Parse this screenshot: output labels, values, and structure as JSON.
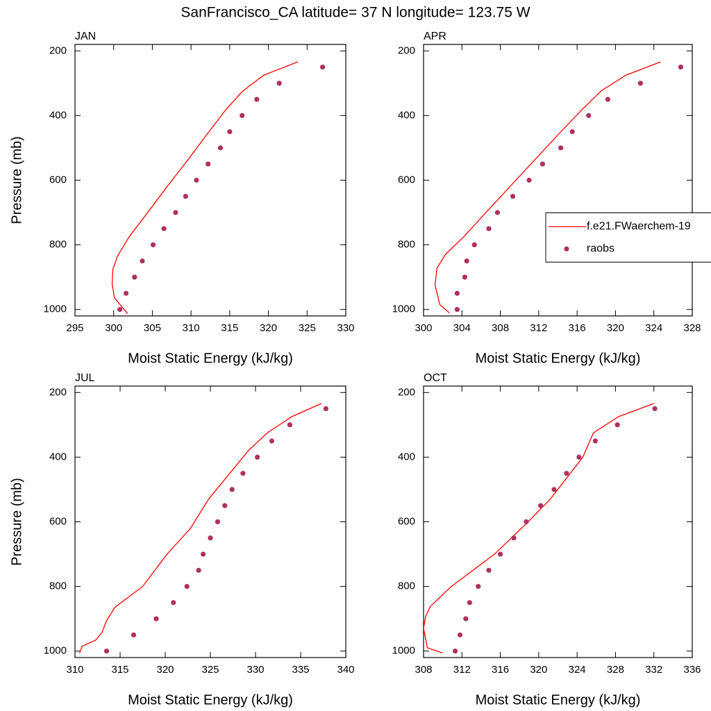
{
  "title": "SanFrancisco_CA  latitude= 37 N longitude= 123.75 W",
  "chart_data": [
    {
      "type": "line",
      "title": "JAN",
      "x_label": "Moist Static Energy (kJ/kg)",
      "y_label": "Pressure (mb)",
      "xlim": [
        295,
        330
      ],
      "xticks": [
        295,
        300,
        305,
        310,
        315,
        320,
        325,
        330
      ],
      "ylim": [
        1020,
        180
      ],
      "yticks": [
        200,
        400,
        600,
        800,
        1000
      ],
      "series": [
        {
          "color": "#ff0000",
          "mode": "lines",
          "x": [
            301.8,
            300.1,
            299.8,
            299.9,
            300.5,
            302.0,
            304.4,
            306.9,
            309.5,
            312.0,
            314.5,
            316.7,
            319.4,
            323.8
          ],
          "y": [
            1013,
            964,
            920,
            875,
            835,
            775,
            700,
            620,
            540,
            460,
            382,
            324,
            275,
            234
          ]
        },
        {
          "color": "#b03060",
          "mode": "markers",
          "x": [
            300.8,
            301.6,
            302.7,
            303.7,
            305.1,
            306.5,
            308.0,
            309.3,
            310.7,
            312.2,
            313.8,
            315.0,
            316.6,
            318.5,
            321.4,
            327.0
          ],
          "y": [
            1000,
            950,
            900,
            850,
            800,
            750,
            700,
            650,
            600,
            550,
            500,
            450,
            400,
            350,
            300,
            250
          ]
        }
      ]
    },
    {
      "type": "line",
      "title": "APR",
      "x_label": "Moist Static Energy (kJ/kg)",
      "legend": "right",
      "xlim": [
        300,
        328
      ],
      "xticks": [
        300,
        304,
        308,
        312,
        316,
        320,
        324,
        328
      ],
      "ylim": [
        1020,
        180
      ],
      "yticks": [
        200,
        400,
        600,
        800,
        1000
      ],
      "series": [
        {
          "name": "f.e21.FWaerchem-19",
          "color": "#ff0000",
          "mode": "lines",
          "x": [
            302.7,
            301.7,
            301.2,
            301.4,
            302.3,
            304.2,
            306.5,
            309.0,
            311.5,
            314.0,
            316.5,
            318.5,
            321.1,
            324.7
          ],
          "y": [
            1011,
            985,
            925,
            872,
            829,
            775,
            700,
            620,
            540,
            460,
            382,
            324,
            275,
            234
          ]
        },
        {
          "name": "raobs",
          "color": "#b03060",
          "mode": "markers",
          "x": [
            303.5,
            303.5,
            304.3,
            304.5,
            305.3,
            306.8,
            307.7,
            309.3,
            311.0,
            312.4,
            314.3,
            315.5,
            317.2,
            319.2,
            322.6,
            326.8
          ],
          "y": [
            1000,
            950,
            900,
            850,
            800,
            750,
            700,
            650,
            600,
            550,
            500,
            450,
            400,
            350,
            300,
            250
          ]
        }
      ]
    },
    {
      "type": "line",
      "title": "JUL",
      "x_label": "Moist Static Energy (kJ/kg)",
      "y_label": "Pressure (mb)",
      "xlim": [
        310,
        340
      ],
      "xticks": [
        310,
        315,
        320,
        325,
        330,
        335,
        340
      ],
      "ylim": [
        1020,
        180
      ],
      "yticks": [
        200,
        400,
        600,
        800,
        1000
      ],
      "series": [
        {
          "color": "#ff0000",
          "mode": "lines",
          "x": [
            310.5,
            310.8,
            312.3,
            313.0,
            313.5,
            314.4,
            317.5,
            320.2,
            322.8,
            324.8,
            329.2,
            331.3,
            334.0,
            337.3
          ],
          "y": [
            1006,
            985,
            966,
            942,
            906,
            865,
            800,
            700,
            620,
            530,
            380,
            325,
            275,
            234
          ]
        },
        {
          "color": "#b03060",
          "mode": "markers",
          "x": [
            313.5,
            316.5,
            319.0,
            320.9,
            322.4,
            323.7,
            324.2,
            325.0,
            325.8,
            326.6,
            327.4,
            328.6,
            330.2,
            331.8,
            333.8,
            337.8
          ],
          "y": [
            1000,
            950,
            900,
            850,
            800,
            750,
            700,
            650,
            600,
            550,
            500,
            450,
            400,
            350,
            300,
            250
          ]
        }
      ]
    },
    {
      "type": "line",
      "title": "OCT",
      "x_label": "Moist Static Energy (kJ/kg)",
      "xlim": [
        308,
        336
      ],
      "xticks": [
        308,
        312,
        316,
        320,
        324,
        328,
        332,
        336
      ],
      "ylim": [
        1020,
        180
      ],
      "yticks": [
        200,
        400,
        600,
        800,
        1000
      ],
      "series": [
        {
          "color": "#ff0000",
          "mode": "lines",
          "x": [
            310.0,
            308.4,
            308.0,
            308.2,
            308.7,
            310.9,
            315.4,
            318.9,
            321.2,
            324.6,
            325.7,
            328.3,
            332.0
          ],
          "y": [
            1006,
            990,
            930,
            895,
            862,
            800,
            700,
            600,
            530,
            400,
            325,
            275,
            234
          ]
        },
        {
          "color": "#b03060",
          "mode": "markers",
          "x": [
            311.3,
            311.8,
            312.4,
            312.8,
            313.7,
            314.8,
            316.0,
            317.4,
            318.7,
            320.2,
            321.6,
            322.9,
            324.2,
            325.9,
            328.2,
            332.1
          ],
          "y": [
            1000,
            950,
            900,
            850,
            800,
            750,
            700,
            650,
            600,
            550,
            500,
            450,
            400,
            350,
            300,
            250
          ]
        }
      ]
    }
  ]
}
